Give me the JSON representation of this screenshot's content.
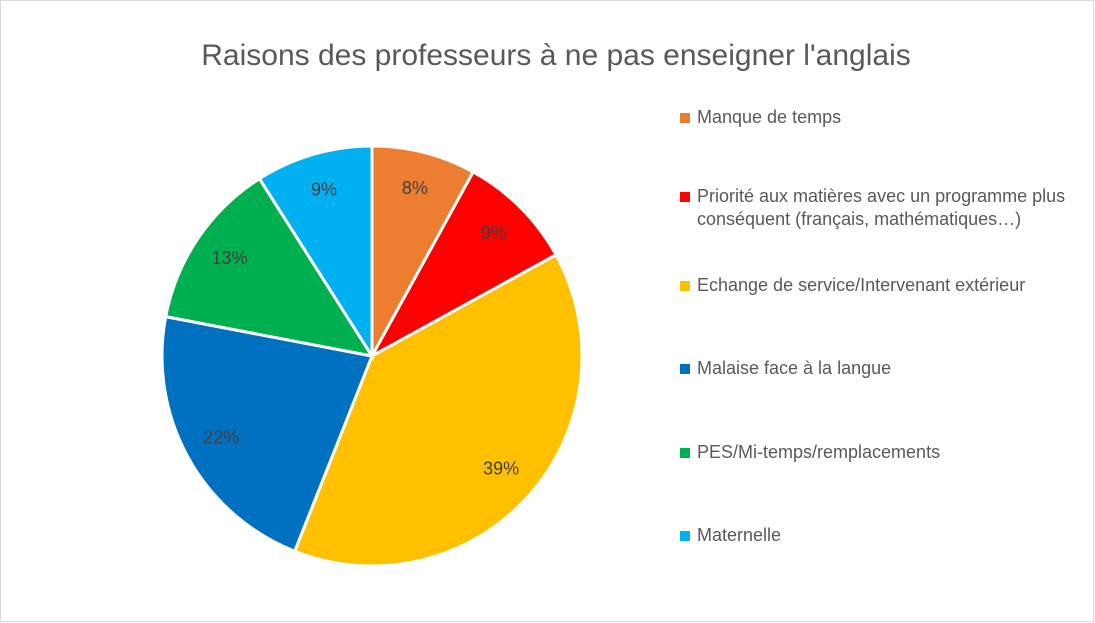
{
  "chart_data": {
    "type": "pie",
    "title": "Raisons des professeurs à ne pas enseigner l'anglais",
    "categories": [
      "Manque de temps",
      "Priorité aux matières avec un programme plus conséquent (français, mathématiques…)",
      "Echange de service/Intervenant extérieur",
      "Malaise face à la langue",
      "PES/Mi-temps/remplacements",
      "Maternelle"
    ],
    "values": [
      8,
      9,
      39,
      22,
      13,
      9
    ],
    "value_labels": [
      "8%",
      "9%",
      "39%",
      "22%",
      "13%",
      "9%"
    ],
    "colors": [
      "#ed7d31",
      "#ff0000",
      "#ffc000",
      "#0070c0",
      "#00b050",
      "#00b0f0"
    ],
    "legend": "right"
  }
}
